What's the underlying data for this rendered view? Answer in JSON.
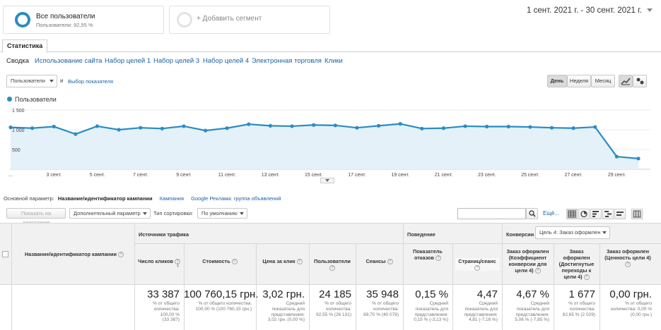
{
  "segments": {
    "all_users": {
      "title": "Все пользователи",
      "subtitle": "Пользователи: 92,55 %"
    },
    "add_segment": "+ Добавить сегмент"
  },
  "date_range": "1 сент. 2021 г. - 30 сент. 2021 г.",
  "tabs": {
    "statistics": "Статистика"
  },
  "subnav": [
    "Сводка",
    "Использование сайта",
    "Набор целей 1",
    "Набор целей 3",
    "Набор целей 4",
    "Электронная торговля",
    "Клики"
  ],
  "chart_controls": {
    "metric_select": "Пользователи",
    "and_label": "и",
    "choose_metric": "Выбор показателя",
    "day": "День",
    "week": "Неделя",
    "month": "Месяц"
  },
  "chart_data": {
    "type": "line",
    "legend": "Пользователи",
    "color": "#2a8cc4",
    "ylim": [
      0,
      1500
    ],
    "y_ticks": [
      "1 500",
      "1 000",
      "500"
    ],
    "y_tick_values": [
      1500,
      1000,
      500
    ],
    "x_ticks": [
      "...",
      "3 сент.",
      "5 сент.",
      "7 сент.",
      "9 сент.",
      "11 сент.",
      "13 сент.",
      "15 сент.",
      "17 сент.",
      "19 сент.",
      "21 сент.",
      "23 сент.",
      "25 сент.",
      "27 сент.",
      "29 сент."
    ],
    "x_tick_days": [
      1,
      3,
      5,
      7,
      9,
      11,
      13,
      15,
      17,
      19,
      21,
      23,
      25,
      27,
      29
    ],
    "x": [
      1,
      2,
      3,
      4,
      5,
      6,
      7,
      8,
      9,
      10,
      11,
      12,
      13,
      14,
      15,
      16,
      17,
      18,
      19,
      20,
      21,
      22,
      23,
      24,
      25,
      26,
      27,
      28,
      29,
      30
    ],
    "values": [
      1060,
      1040,
      1080,
      890,
      1090,
      1000,
      1050,
      1030,
      1090,
      980,
      1040,
      1140,
      1100,
      1090,
      1120,
      1110,
      1050,
      1100,
      1150,
      1030,
      1040,
      1090,
      1080,
      1080,
      1070,
      1050,
      1040,
      1070,
      320,
      270
    ]
  },
  "dimension_bar": {
    "label": "Основной параметр:",
    "active": "Название/идентификатор кампании",
    "opt1": "Кампания",
    "opt2": "Google Реклама: группа объявлений"
  },
  "toolbar": {
    "show_on_chart": "Показать на диаграмме",
    "secondary": "Дополнительный параметр",
    "sort_label": "Тип сортировки:",
    "sort_value": "По умолчанию",
    "more": "Ещё..."
  },
  "table": {
    "dim_header": "Название/идентификатор кампании",
    "groups": {
      "acquisition": "Источники трафика",
      "behavior": "Поведение",
      "conversions": "Конверсии",
      "goal_select": "Цель 4: Заказ оформлен"
    },
    "columns": [
      {
        "h": "Число кликов",
        "big": "33 387",
        "s1": "% от общего",
        "s2": "количества:",
        "s3": "100,00 %",
        "s4": "(33 387)"
      },
      {
        "h": "Стоимость",
        "big": "100 760,15 грн.",
        "s1": "% от общего количества:",
        "s2": "100,00 % (100 760,15 грн.)",
        "s3": "",
        "s4": ""
      },
      {
        "h": "Цена за клик",
        "big": "3,02 грн.",
        "s1": "Средний",
        "s2": "показатель для",
        "s3": "представления:",
        "s4": "3,02 грн. (0,00 %)"
      },
      {
        "h": "Пользователи",
        "big": "24 185",
        "s1": "% от общего",
        "s2": "количества:",
        "s3": "92,55 % (26 131)",
        "s4": ""
      },
      {
        "h": "Сеансы",
        "big": "35 948",
        "s1": "% от общего",
        "s2": "количества:",
        "s3": "89,70 % (40 078)",
        "s4": ""
      },
      {
        "h": "Показатель отказов",
        "big": "0,15 %",
        "s1": "Средний",
        "s2": "показатель для",
        "s3": "представления:",
        "s4": "0,15 % (-3,13 %)"
      },
      {
        "h": "Страниц/сеанс",
        "big": "4,47",
        "s1": "Средний",
        "s2": "показатель для",
        "s3": "представления:",
        "s4": "4,81 (-7,16 %)"
      },
      {
        "h": "Заказ оформлен (Коэффициент конверсии для цели 4)",
        "big": "4,67 %",
        "s1": "Средний",
        "s2": "показатель для",
        "s3": "представления:",
        "s4": "5,06 % (-7,85 %)"
      },
      {
        "h": "Заказ оформлен (Достигнутые переходы к цели 4)",
        "big": "1 677",
        "s1": "% от общего",
        "s2": "количества:",
        "s3": "82,65 % (2 029)",
        "s4": ""
      },
      {
        "h": "Заказ оформлен (Ценность цели 4)",
        "big": "0,00 грн.",
        "s1": "% от общего",
        "s2": "количества: 0,00 %",
        "s3": "(0,00 грн.)",
        "s4": ""
      }
    ]
  }
}
